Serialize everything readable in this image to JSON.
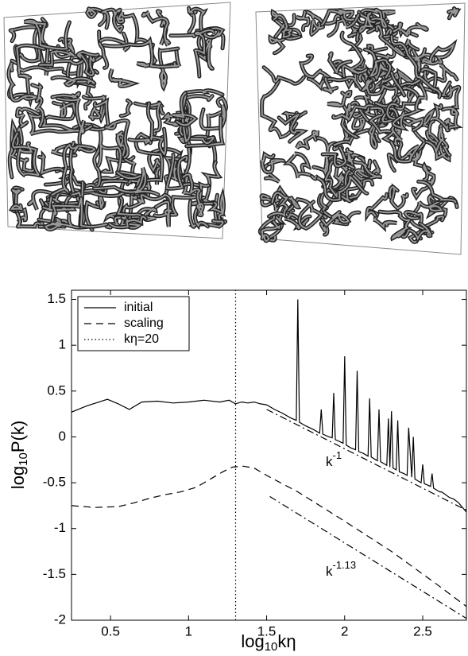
{
  "chart_data": {
    "type": "line",
    "xlabel": [
      "log",
      "10",
      "kη"
    ],
    "ylabel": [
      "log",
      "10",
      "P(k)"
    ],
    "xlim": [
      0.25,
      2.78
    ],
    "ylim": [
      -2,
      1.6
    ],
    "xticks": [
      0.5,
      1,
      1.5,
      2,
      2.5
    ],
    "yticks": [
      -2,
      -1.5,
      -1,
      -0.5,
      0,
      0.5,
      1,
      1.5
    ],
    "legend": "top-left",
    "series": [
      {
        "name": "initial",
        "color": "#000",
        "dash": "solid",
        "x": [
          0.25,
          0.35,
          0.48,
          0.55,
          0.62,
          0.7,
          0.8,
          0.9,
          1.0,
          1.1,
          1.2,
          1.26,
          1.3,
          1.34,
          1.38,
          1.42,
          1.46,
          1.5,
          1.55,
          1.6,
          1.65,
          1.69,
          1.7,
          1.71,
          1.75,
          1.8,
          1.84,
          1.85,
          1.86,
          1.9,
          1.92,
          1.93,
          1.94,
          1.98,
          1.99,
          2.0,
          2.01,
          2.04,
          2.07,
          2.08,
          2.09,
          2.12,
          2.15,
          2.16,
          2.17,
          2.2,
          2.21,
          2.22,
          2.23,
          2.26,
          2.27,
          2.28,
          2.29,
          2.3,
          2.31,
          2.33,
          2.34,
          2.35,
          2.38,
          2.4,
          2.41,
          2.43,
          2.44,
          2.45,
          2.49,
          2.5,
          2.51,
          2.55,
          2.56,
          2.57,
          2.61,
          2.62,
          2.63,
          2.67,
          2.7,
          2.73,
          2.76,
          2.78
        ],
        "values": [
          0.27,
          0.34,
          0.41,
          0.36,
          0.3,
          0.38,
          0.39,
          0.37,
          0.38,
          0.4,
          0.38,
          0.4,
          0.36,
          0.38,
          0.37,
          0.38,
          0.36,
          0.35,
          0.3,
          0.26,
          0.21,
          0.18,
          1.5,
          0.16,
          0.12,
          0.08,
          0.04,
          0.3,
          0.03,
          0.0,
          -0.01,
          0.48,
          -0.03,
          -0.06,
          -0.07,
          0.88,
          -0.09,
          -0.12,
          -0.14,
          0.72,
          -0.16,
          -0.18,
          -0.21,
          0.42,
          -0.22,
          -0.25,
          -0.26,
          0.3,
          -0.27,
          -0.3,
          -0.31,
          0.2,
          -0.33,
          0.28,
          -0.34,
          -0.36,
          0.18,
          -0.38,
          -0.4,
          -0.42,
          0.1,
          -0.44,
          0.0,
          -0.46,
          -0.5,
          -0.3,
          -0.51,
          -0.54,
          -0.4,
          -0.56,
          -0.6,
          -0.6,
          -0.61,
          -0.66,
          -0.68,
          -0.72,
          -0.78,
          -0.82
        ]
      },
      {
        "name": "scaling",
        "color": "#000",
        "dash": "dashed",
        "x": [
          0.25,
          0.4,
          0.55,
          0.65,
          0.75,
          0.85,
          0.95,
          1.05,
          1.15,
          1.22,
          1.28,
          1.35,
          1.42,
          1.5,
          1.7,
          2.0,
          2.3,
          2.6,
          2.78
        ],
        "values": [
          -0.75,
          -0.77,
          -0.76,
          -0.72,
          -0.67,
          -0.63,
          -0.6,
          -0.55,
          -0.45,
          -0.38,
          -0.33,
          -0.32,
          -0.34,
          -0.42,
          -0.6,
          -0.92,
          -1.25,
          -1.62,
          -1.85
        ]
      },
      {
        "name": "kη=20",
        "color": "#000",
        "dash": "dotted",
        "x": [
          1.301,
          1.301
        ],
        "values": [
          -2,
          1.6
        ]
      }
    ],
    "annotations": [
      {
        "base": "k",
        "sup": "-1",
        "dash": "dashdot",
        "x": [
          1.5,
          2.78
        ],
        "values": [
          0.3,
          -0.8
        ]
      },
      {
        "base": "k",
        "sup": "-1.13",
        "dash": "dashdot",
        "x": [
          1.52,
          2.78
        ],
        "values": [
          -0.65,
          -1.98
        ]
      }
    ]
  }
}
